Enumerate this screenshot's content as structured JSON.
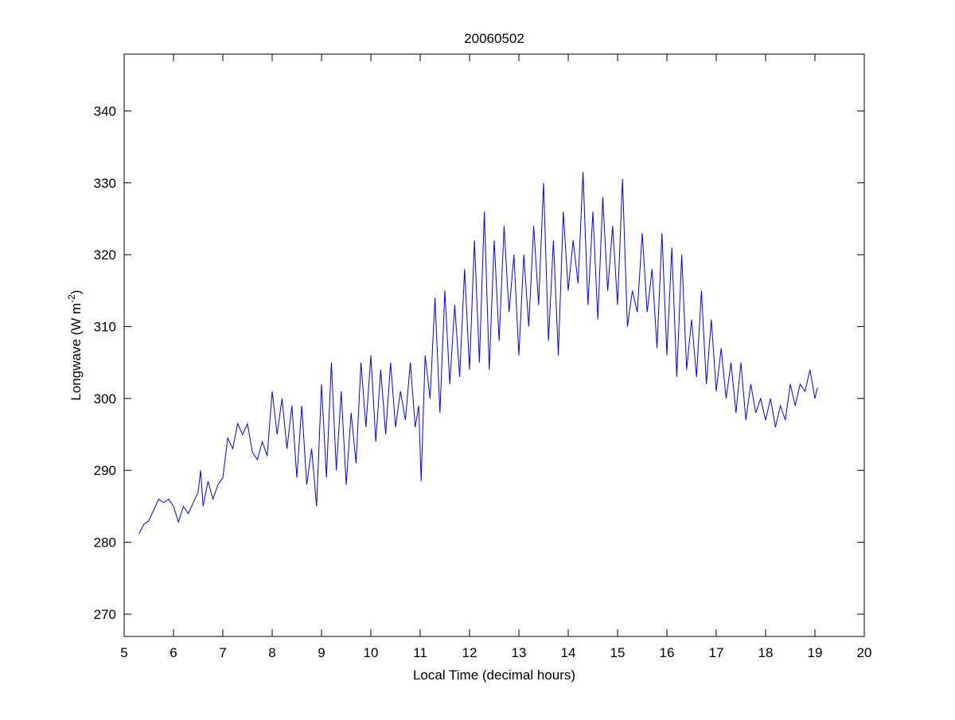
{
  "chart_data": {
    "type": "line",
    "title": "20060502",
    "xlabel": "Local Time (decimal hours)",
    "ylabel": {
      "base": "Longwave (W m",
      "sup": "-2",
      "end": ")"
    },
    "xlim": [
      5,
      20
    ],
    "ylim": [
      266.9,
      347.9
    ],
    "xticks": [
      5,
      6,
      7,
      8,
      9,
      10,
      11,
      12,
      13,
      14,
      15,
      16,
      17,
      18,
      19,
      20
    ],
    "yticks": [
      270,
      280,
      290,
      300,
      310,
      320,
      330,
      340
    ],
    "grid": false,
    "line_color": "#0000ff",
    "series": [
      {
        "name": "Longwave",
        "x": [
          5.3,
          5.4,
          5.5,
          5.6,
          5.7,
          5.8,
          5.9,
          6.0,
          6.1,
          6.2,
          6.3,
          6.4,
          6.5,
          6.55,
          6.6,
          6.7,
          6.8,
          6.9,
          7.0,
          7.1,
          7.2,
          7.3,
          7.4,
          7.5,
          7.6,
          7.7,
          7.8,
          7.9,
          8.0,
          8.1,
          8.2,
          8.3,
          8.4,
          8.5,
          8.6,
          8.7,
          8.8,
          8.9,
          9.0,
          9.1,
          9.2,
          9.3,
          9.4,
          9.5,
          9.6,
          9.7,
          9.8,
          9.9,
          10.0,
          10.1,
          10.2,
          10.3,
          10.4,
          10.5,
          10.6,
          10.7,
          10.8,
          10.9,
          10.97,
          11.02,
          11.1,
          11.2,
          11.3,
          11.4,
          11.5,
          11.6,
          11.7,
          11.8,
          11.9,
          12.0,
          12.1,
          12.2,
          12.3,
          12.4,
          12.5,
          12.6,
          12.7,
          12.8,
          12.9,
          13.0,
          13.1,
          13.2,
          13.3,
          13.4,
          13.5,
          13.6,
          13.7,
          13.8,
          13.9,
          14.0,
          14.1,
          14.2,
          14.3,
          14.4,
          14.5,
          14.6,
          14.7,
          14.8,
          14.9,
          15.0,
          15.1,
          15.2,
          15.3,
          15.4,
          15.5,
          15.6,
          15.7,
          15.8,
          15.9,
          16.0,
          16.1,
          16.2,
          16.3,
          16.4,
          16.5,
          16.6,
          16.7,
          16.8,
          16.9,
          17.0,
          17.1,
          17.2,
          17.3,
          17.4,
          17.5,
          17.6,
          17.7,
          17.8,
          17.9,
          18.0,
          18.1,
          18.2,
          18.3,
          18.4,
          18.5,
          18.6,
          18.7,
          18.8,
          18.9,
          19.0,
          19.05
        ],
        "y": [
          281.2,
          282.5,
          283,
          284.5,
          286,
          285.5,
          286,
          285,
          282.8,
          285,
          284,
          285.5,
          287,
          290,
          285,
          288.5,
          286,
          288,
          289,
          294.5,
          293,
          296.5,
          295,
          296.5,
          292.5,
          291.5,
          294,
          292,
          301,
          295,
          300,
          293,
          299,
          289,
          299,
          288,
          293,
          285,
          302,
          289,
          305,
          290,
          301,
          288,
          298,
          291,
          305,
          296,
          306,
          294,
          304,
          295,
          305,
          296,
          301,
          297,
          305,
          296,
          299,
          288.5,
          306,
          300,
          314,
          298,
          315,
          302,
          313,
          303,
          318,
          304,
          322,
          305,
          326,
          304,
          322,
          308,
          324,
          312,
          320,
          306,
          320,
          310,
          324,
          313,
          330,
          308,
          322,
          306,
          326,
          315,
          322,
          316,
          331.5,
          313,
          326,
          311,
          328,
          315,
          324,
          313,
          330.5,
          310,
          315,
          312,
          323,
          312,
          318,
          307,
          323,
          306,
          321,
          303,
          320,
          304,
          311,
          303,
          315,
          302,
          311,
          301,
          307,
          300,
          305,
          298,
          305,
          297,
          302,
          298,
          300,
          297,
          300,
          296,
          299,
          297,
          302,
          299,
          302,
          301,
          304,
          300,
          301.5
        ]
      }
    ]
  }
}
